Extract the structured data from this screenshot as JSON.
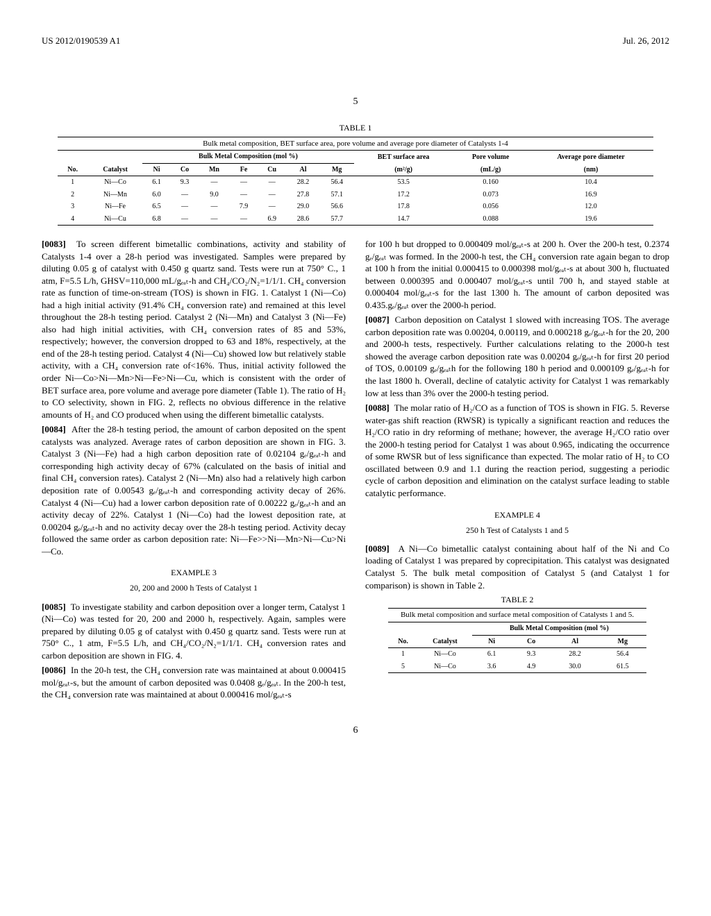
{
  "document_header": {
    "pub_number": "US 2012/0190539 A1",
    "date": "Jul. 26, 2012"
  },
  "page_number_top": "5",
  "page_number_bottom": "6",
  "table1": {
    "label": "TABLE 1",
    "caption": "Bulk metal composition, BET surface area, pore volume and average pore diameter of Catalysts 1-4",
    "group_headers": [
      "Bulk Metal Composition (mol %)",
      "BET surface area",
      "Pore volume",
      "Average pore diameter"
    ],
    "columns": [
      "No.",
      "Catalyst",
      "Ni",
      "Co",
      "Mn",
      "Fe",
      "Cu",
      "Al",
      "Mg",
      "(m²/g)",
      "(mL/g)",
      "(nm)"
    ],
    "rows": [
      [
        "1",
        "Ni—Co",
        "6.1",
        "9.3",
        "—",
        "—",
        "—",
        "28.2",
        "56.4",
        "53.5",
        "0.160",
        "10.4"
      ],
      [
        "2",
        "Ni—Mn",
        "6.0",
        "—",
        "9.0",
        "—",
        "—",
        "27.8",
        "57.1",
        "17.2",
        "0.073",
        "16.9"
      ],
      [
        "3",
        "Ni—Fe",
        "6.5",
        "—",
        "—",
        "7.9",
        "—",
        "29.0",
        "56.6",
        "17.8",
        "0.056",
        "12.0"
      ],
      [
        "4",
        "Ni—Cu",
        "6.8",
        "—",
        "—",
        "—",
        "6.9",
        "28.6",
        "57.7",
        "14.7",
        "0.088",
        "19.6"
      ]
    ]
  },
  "para_0083_num": "[0083]",
  "para_0083": "To screen different bimetallic combinations, activity and stability of Catalysts 1-4 over a 28-h period was investigated. Samples were prepared by diluting 0.05 g of catalyst with 0.450 g quartz sand. Tests were run at 750° C., 1 atm, F=5.5 L/h, GHSV=110,000 mL/gₑₐₜ-h and CH₄/CO₂/N₂=1/1/1. CH₄ conversion rate as function of time-on-stream (TOS) is shown in FIG. 1. Catalyst 1 (Ni—Co) had a high initial activity (91.4% CH₄ conversion rate) and remained at this level throughout the 28-h testing period. Catalyst 2 (Ni—Mn) and Catalyst 3 (Ni—Fe) also had high initial activities, with CH₄ conversion rates of 85 and 53%, respectively; however, the conversion dropped to 63 and 18%, respectively, at the end of the 28-h testing period. Catalyst 4 (Ni—Cu) showed low but relatively stable activity, with a CH₄ conversion rate of<16%. Thus, initial activity followed the order Ni—Co>Ni—Mn>Ni—Fe>Ni—Cu, which is consistent with the order of BET surface area, pore volume and average pore diameter (Table 1). The ratio of H₂ to CO selectivity, shown in FIG. 2, reflects no obvious difference in the relative amounts of H₂ and CO produced when using the different bimetallic catalysts.",
  "para_0084_num": "[0084]",
  "para_0084": "After the 28-h testing period, the amount of carbon deposited on the spent catalysts was analyzed. Average rates of carbon deposition are shown in FIG. 3. Catalyst 3 (Ni—Fe) had a high carbon deposition rate of 0.02104 gₑ/gₑₐₜ-h and corresponding high activity decay of 67% (calculated on the basis of initial and final CH₄ conversion rates). Catalyst 2 (Ni—Mn) also had a relatively high carbon deposition rate of 0.00543 gₑ/gₑₐₜ-h and corresponding activity decay of 26%. Catalyst 4 (Ni—Cu) had a lower carbon deposition rate of 0.00222 gₑ/gₑₐₜ-h and an activity decay of 22%. Catalyst 1 (Ni—Co) had the lowest deposition rate, at 0.00204 gₑ/gₑₐₜ-h and no activity decay over the 28-h testing period. Activity decay followed the same order as carbon deposition rate: Ni—Fe>>Ni—Mn>Ni—Cu>Ni—Co.",
  "example3_label": "EXAMPLE 3",
  "example3_title": "20, 200 and 2000 h Tests of Catalyst 1",
  "para_0085_num": "[0085]",
  "para_0085": "To investigate stability and carbon deposition over a longer term, Catalyst 1 (Ni—Co) was tested for 20, 200 and 2000 h, respectively. Again, samples were prepared by diluting 0.05 g of catalyst with 0.450 g quartz sand. Tests were run at 750° C., 1 atm, F=5.5 L/h, and CH₄/CO₂/N₂=1/1/1. CH₄ conversion rates and carbon deposition are shown in FIG. 4.",
  "para_0086_num": "[0086]",
  "para_0086": "In the 20-h test, the CH₄ conversion rate was maintained at about 0.000415 mol/gₑₐₜ-s, but the amount of carbon deposited was 0.0408 gₑ/gₑₐₜ. In the 200-h test, the CH₄ conversion rate was maintained at about 0.000416 mol/gₑₐₜ-s",
  "para_0086_cont": "for 100 h but dropped to 0.000409 mol/gₑₐₜ-s at 200 h. Over the 200-h test, 0.2374 gₑ/gₑₐₜ was formed. In the 2000-h test, the CH₄ conversion rate again began to drop at 100 h from the initial 0.000415 to 0.000398 mol/gₑₐₜ-s at about 300 h, fluctuated between 0.000395 and 0.000407 mol/gₑₐₜ-s until 700 h, and stayed stable at 0.000404 mol/gₑₐₜ-s for the last 1300 h. The amount of carbon deposited was 0.435.gₑ/gₑₐₜ over the 2000-h period.",
  "para_0087_num": "[0087]",
  "para_0087": "Carbon deposition on Catalyst 1 slowed with increasing TOS. The average carbon deposition rate was 0.00204, 0.00119, and 0.000218 gₑ/gₑₐₜ-h for the 20, 200 and 2000-h tests, respectively. Further calculations relating to the 2000-h test showed the average carbon deposition rate was 0.00204 gₑ/gₑₐₜ-h for first 20 period of TOS, 0.00109 gₑ/gₑₐₜh for the following 180 h period and 0.000109 gₑ/gₑₐₜ-h for the last 1800 h. Overall, decline of catalytic activity for Catalyst 1 was remarkably low at less than 3% over the 2000-h testing period.",
  "para_0088_num": "[0088]",
  "para_0088": "The molar ratio of H₂/CO as a function of TOS is shown in FIG. 5. Reverse water-gas shift reaction (RWSR) is typically a significant reaction and reduces the H₂/CO ratio in dry reforming of methane; however, the average H₂/CO ratio over the 2000-h testing period for Catalyst 1 was about 0.965, indicating the occurrence of some RWSR but of less significance than expected. The molar ratio of H₂ to CO oscillated between 0.9 and 1.1 during the reaction period, suggesting a periodic cycle of carbon deposition and elimination on the catalyst surface leading to stable catalytic performance.",
  "example4_label": "EXAMPLE 4",
  "example4_title": "250 h Test of Catalysts 1 and 5",
  "para_0089_num": "[0089]",
  "para_0089": "A Ni—Co bimetallic catalyst containing about half of the Ni and Co loading of Catalyst 1 was prepared by coprecipitation. This catalyst was designated Catalyst 5. The bulk metal composition of Catalyst 5 (and Catalyst 1 for comparison) is shown in Table 2.",
  "table2": {
    "label": "TABLE 2",
    "caption": "Bulk metal composition and surface metal composition of Catalysts 1 and 5.",
    "group_header": "Bulk Metal Composition (mol %)",
    "columns": [
      "No.",
      "Catalyst",
      "Ni",
      "Co",
      "Al",
      "Mg"
    ],
    "rows": [
      [
        "1",
        "Ni—Co",
        "6.1",
        "9.3",
        "28.2",
        "56.4"
      ],
      [
        "5",
        "Ni—Co",
        "3.6",
        "4.9",
        "30.0",
        "61.5"
      ]
    ]
  }
}
